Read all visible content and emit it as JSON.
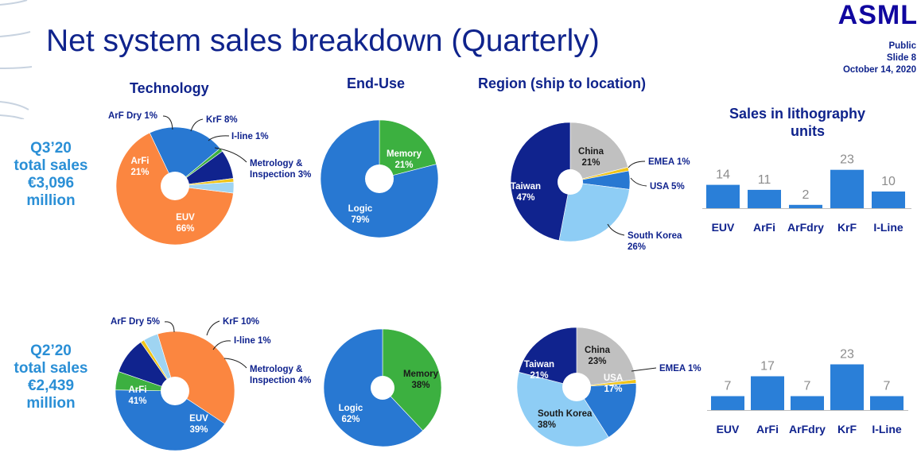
{
  "header": {
    "title": "Net system sales breakdown (Quarterly)",
    "logo": "ASML",
    "classification": "Public",
    "slide": "Slide 8",
    "date": "October 14, 2020"
  },
  "columns": {
    "technology": "Technology",
    "end_use": "End-Use",
    "region": "Region (ship to location)",
    "units_line1": "Sales in lithography",
    "units_line2": "units"
  },
  "rows": [
    {
      "l1": "Q3’20",
      "l2": "total sales",
      "l3": "€3,096",
      "l4": "million"
    },
    {
      "l1": "Q2’20",
      "l2": "total sales",
      "l3": "€2,439",
      "l4": "million"
    }
  ],
  "colors": {
    "euv": "#fb8640",
    "arfi": "#2878d2",
    "arfdry": "#3cb040",
    "krf": "#10238e",
    "iline": "#f0c419",
    "metro": "#9fd4f2",
    "logic": "#2878d2",
    "memory": "#3cb040",
    "taiwan": "#10238e",
    "china": "#c0c0c0",
    "emea": "#f0c419",
    "usa": "#2878d2",
    "southkorea": "#8ecdf5",
    "bar": "#2a7fd8"
  },
  "chart_data": [
    {
      "type": "pie",
      "title": "",
      "group": "Technology Q3’20",
      "slices": [
        {
          "label": "EUV",
          "value": 66,
          "display": "66%",
          "color": "euv"
        },
        {
          "label": "ArFi",
          "value": 21,
          "display": "21%",
          "color": "arfi"
        },
        {
          "label": "ArF Dry",
          "value": 1,
          "display": "1%",
          "color": "arfdry"
        },
        {
          "label": "KrF",
          "value": 8,
          "display": "8%",
          "color": "krf"
        },
        {
          "label": "I-line",
          "value": 1,
          "display": "1%",
          "color": "iline"
        },
        {
          "label": "Metrology & Inspection",
          "value": 3,
          "display": "3%",
          "color": "metro"
        }
      ]
    },
    {
      "type": "pie",
      "title": "",
      "group": "End-Use Q3’20",
      "slices": [
        {
          "label": "Memory",
          "value": 21,
          "display": "21%",
          "color": "memory"
        },
        {
          "label": "Logic",
          "value": 79,
          "display": "79%",
          "color": "logic"
        }
      ]
    },
    {
      "type": "pie",
      "title": "",
      "group": "Region Q3’20",
      "slices": [
        {
          "label": "China",
          "value": 21,
          "display": "21%",
          "color": "china"
        },
        {
          "label": "EMEA",
          "value": 1,
          "display": "1%",
          "color": "emea"
        },
        {
          "label": "USA",
          "value": 5,
          "display": "5%",
          "color": "usa"
        },
        {
          "label": "South Korea",
          "value": 26,
          "display": "26%",
          "color": "southkorea"
        },
        {
          "label": "Taiwan",
          "value": 47,
          "display": "47%",
          "color": "taiwan"
        }
      ]
    },
    {
      "type": "bar",
      "title": "",
      "group": "Sales in lithography units Q3’20",
      "categories": [
        "EUV",
        "ArFi",
        "ArFdry",
        "KrF",
        "I-Line"
      ],
      "values": [
        14,
        11,
        2,
        23,
        10
      ]
    },
    {
      "type": "pie",
      "title": "",
      "group": "Technology Q2’20",
      "slices": [
        {
          "label": "EUV",
          "value": 39,
          "display": "39%",
          "color": "euv"
        },
        {
          "label": "ArFi",
          "value": 41,
          "display": "41%",
          "color": "arfi"
        },
        {
          "label": "ArF Dry",
          "value": 5,
          "display": "5%",
          "color": "arfdry"
        },
        {
          "label": "KrF",
          "value": 10,
          "display": "10%",
          "color": "krf"
        },
        {
          "label": "I-line",
          "value": 1,
          "display": "1%",
          "color": "iline"
        },
        {
          "label": "Metrology & Inspection",
          "value": 4,
          "display": "4%",
          "color": "metro"
        }
      ]
    },
    {
      "type": "pie",
      "title": "",
      "group": "End-Use Q2’20",
      "slices": [
        {
          "label": "Memory",
          "value": 38,
          "display": "38%",
          "color": "memory"
        },
        {
          "label": "Logic",
          "value": 62,
          "display": "62%",
          "color": "logic"
        }
      ]
    },
    {
      "type": "pie",
      "title": "",
      "group": "Region Q2’20",
      "slices": [
        {
          "label": "China",
          "value": 23,
          "display": "23%",
          "color": "china"
        },
        {
          "label": "EMEA",
          "value": 1,
          "display": "1%",
          "color": "emea"
        },
        {
          "label": "USA",
          "value": 17,
          "display": "17%",
          "color": "usa"
        },
        {
          "label": "South Korea",
          "value": 38,
          "display": "38%",
          "color": "southkorea"
        },
        {
          "label": "Taiwan",
          "value": 21,
          "display": "21%",
          "color": "taiwan"
        }
      ]
    },
    {
      "type": "bar",
      "title": "",
      "group": "Sales in lithography units Q2’20",
      "categories": [
        "EUV",
        "ArFi",
        "ArFdry",
        "KrF",
        "I-Line"
      ],
      "values": [
        7,
        17,
        7,
        23,
        7
      ]
    }
  ]
}
